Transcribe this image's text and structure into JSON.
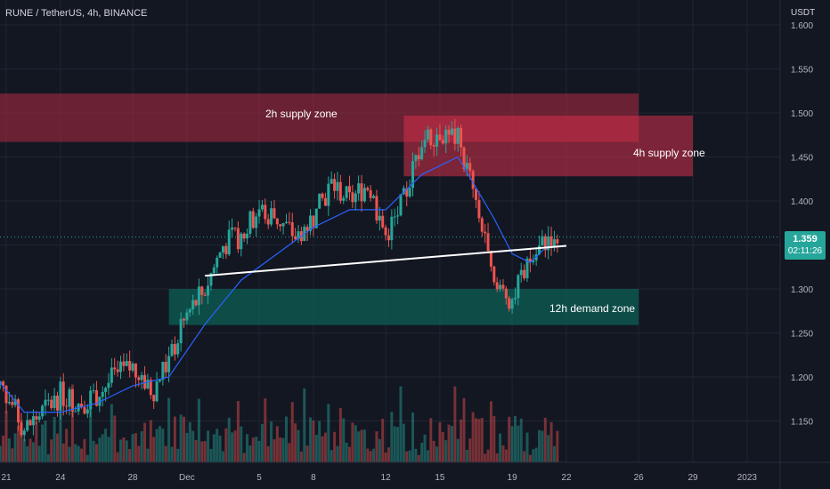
{
  "header": {
    "title": "RUNE / TetherUS, 4h, BINANCE",
    "currency": "USDT"
  },
  "last_price": {
    "value": "1.359",
    "countdown": "02:11:26"
  },
  "colors": {
    "background": "#131722",
    "grid": "#1f2430",
    "up_candle": "#26a69a",
    "down_candle": "#ef5350",
    "ma_line": "#2962ff",
    "supply_zone": "#d32f4a",
    "demand_zone": "#0e5f55",
    "trendline": "#ffffff",
    "axis_text": "#b2b5be"
  },
  "chart_data": {
    "type": "candlestick",
    "title": "RUNE / TetherUS, 4h, BINANCE",
    "yaxis_unit": "USDT",
    "ylim": [
      1.11,
      1.61
    ],
    "y_ticks": [
      1.15,
      1.2,
      1.25,
      1.3,
      1.35,
      1.4,
      1.45,
      1.5,
      1.55,
      1.6
    ],
    "y_tick_labels": [
      "1.150",
      "1.200",
      "1.250",
      "1.300",
      "1.350",
      "1.400",
      "1.450",
      "1.500",
      "1.550",
      "1.600"
    ],
    "x_tick_labels": [
      "21",
      "24",
      "28",
      "Dec",
      "5",
      "8",
      "12",
      "15",
      "19",
      "22",
      "26",
      "29",
      "2023"
    ],
    "x_tick_dates": [
      "2022-11-21",
      "2022-11-24",
      "2022-11-28",
      "2022-12-01",
      "2022-12-05",
      "2022-12-08",
      "2022-12-12",
      "2022-12-15",
      "2022-12-19",
      "2022-12-22",
      "2022-12-26",
      "2022-12-29",
      "2023-01-01"
    ],
    "price_path": [
      [
        "2022-11-20",
        1.21
      ],
      [
        "2022-11-21",
        1.18
      ],
      [
        "2022-11-22",
        1.14
      ],
      [
        "2022-11-23",
        1.16
      ],
      [
        "2022-11-24",
        1.18
      ],
      [
        "2022-11-25",
        1.17
      ],
      [
        "2022-11-26",
        1.18
      ],
      [
        "2022-11-27",
        1.2
      ],
      [
        "2022-11-28",
        1.21
      ],
      [
        "2022-11-29",
        1.18
      ],
      [
        "2022-11-30",
        1.22
      ],
      [
        "2022-12-01",
        1.27
      ],
      [
        "2022-12-02",
        1.3
      ],
      [
        "2022-12-03",
        1.35
      ],
      [
        "2022-12-04",
        1.36
      ],
      [
        "2022-12-05",
        1.39
      ],
      [
        "2022-12-06",
        1.38
      ],
      [
        "2022-12-07",
        1.36
      ],
      [
        "2022-12-08",
        1.38
      ],
      [
        "2022-12-09",
        1.42
      ],
      [
        "2022-12-10",
        1.4
      ],
      [
        "2022-12-11",
        1.42
      ],
      [
        "2022-12-12",
        1.36
      ],
      [
        "2022-12-13",
        1.4
      ],
      [
        "2022-12-14",
        1.47
      ],
      [
        "2022-12-15",
        1.48
      ],
      [
        "2022-12-16",
        1.47
      ],
      [
        "2022-12-17",
        1.4
      ],
      [
        "2022-12-18",
        1.3
      ],
      [
        "2022-12-19",
        1.29
      ],
      [
        "2022-12-20",
        1.33
      ],
      [
        "2022-12-21",
        1.36
      ]
    ],
    "moving_average": [
      [
        "2022-11-20",
        1.21
      ],
      [
        "2022-11-22",
        1.16
      ],
      [
        "2022-11-24",
        1.16
      ],
      [
        "2022-11-26",
        1.17
      ],
      [
        "2022-11-28",
        1.19
      ],
      [
        "2022-11-30",
        1.2
      ],
      [
        "2022-12-02",
        1.26
      ],
      [
        "2022-12-04",
        1.31
      ],
      [
        "2022-12-06",
        1.34
      ],
      [
        "2022-12-08",
        1.37
      ],
      [
        "2022-12-10",
        1.39
      ],
      [
        "2022-12-12",
        1.39
      ],
      [
        "2022-12-14",
        1.43
      ],
      [
        "2022-12-16",
        1.45
      ],
      [
        "2022-12-18",
        1.38
      ],
      [
        "2022-12-19",
        1.34
      ],
      [
        "2022-12-20",
        1.33
      ],
      [
        "2022-12-21",
        1.35
      ]
    ],
    "trendline": {
      "from": [
        "2022-12-02",
        1.315
      ],
      "to": [
        "2022-12-22",
        1.349
      ]
    },
    "zones": [
      {
        "label": "2h supply zone",
        "kind": "supply",
        "from": "2022-11-20",
        "to": "2022-12-26",
        "y_low": 1.467,
        "y_high": 1.522
      },
      {
        "label": "4h supply zone",
        "kind": "supply",
        "from": "2022-12-13",
        "to": "2022-12-29",
        "y_low": 1.428,
        "y_high": 1.497
      },
      {
        "label": "12h demand zone",
        "kind": "demand",
        "from": "2022-11-30",
        "to": "2022-12-26",
        "y_low": 1.259,
        "y_high": 1.3
      }
    ]
  }
}
